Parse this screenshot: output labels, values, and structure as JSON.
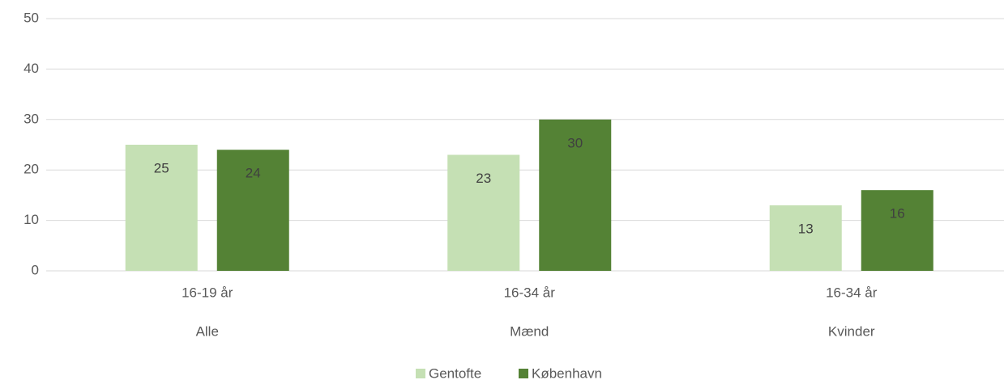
{
  "chart_data": {
    "type": "bar",
    "categories": [
      "16-19 år",
      "16-34 år",
      "16-34 år"
    ],
    "groups": [
      "Alle",
      "Mænd",
      "Kvinder"
    ],
    "series": [
      {
        "name": "Gentofte",
        "color": "#c5e0b4",
        "values": [
          25,
          23,
          13
        ]
      },
      {
        "name": "København",
        "color": "#548235",
        "values": [
          24,
          30,
          16
        ]
      }
    ],
    "ylim": [
      0,
      50
    ],
    "yticks": [
      0,
      10,
      20,
      30,
      40,
      50
    ],
    "grid": true,
    "legend": "bottom"
  }
}
